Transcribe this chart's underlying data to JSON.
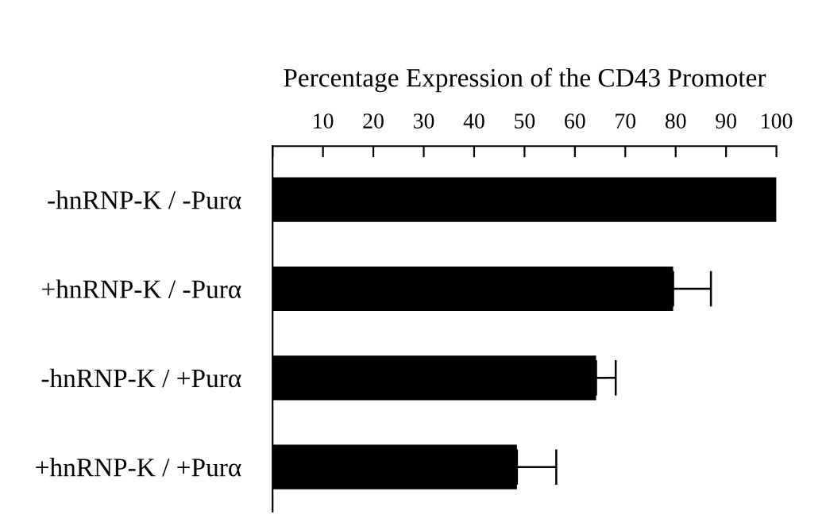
{
  "chart_data": {
    "type": "bar",
    "orientation": "horizontal",
    "xlabel": "Percentage Expression of the CD43 Promoter",
    "categories": [
      "-hnRNP-K / -Purα",
      "+hnRNP-K / -Purα",
      "-hnRNP-K / +Purα",
      "+hnRNP-K / +Purα"
    ],
    "values": [
      100,
      79.5,
      64.2,
      48.5
    ],
    "color": "#000000",
    "errors": [
      null,
      [
        79.5,
        87
      ],
      [
        64.2,
        68.1
      ],
      [
        48.5,
        56.3
      ]
    ],
    "xlim": [
      0,
      100
    ],
    "xticks": [
      {
        "value": 0,
        "label": null
      },
      10,
      20,
      30,
      40,
      50,
      60,
      70,
      80,
      90,
      100
    ],
    "grid": false,
    "legend": false
  }
}
